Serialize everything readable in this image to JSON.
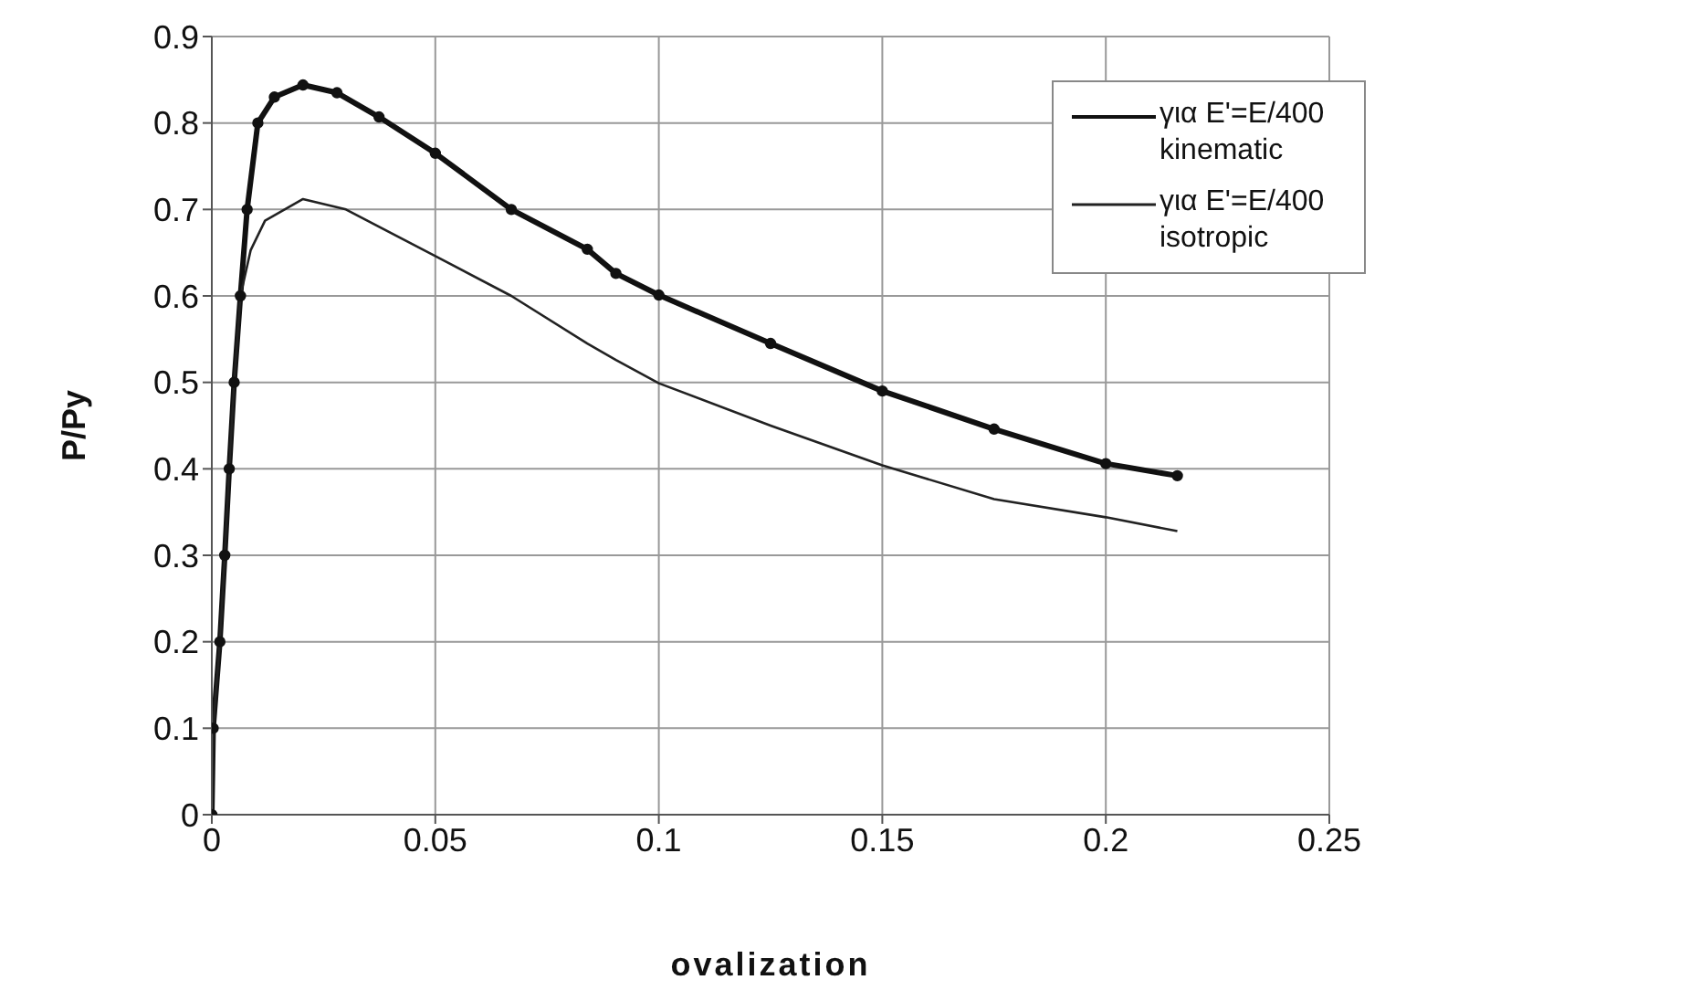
{
  "chart_data": {
    "type": "line",
    "xlabel": "ovalization",
    "ylabel": "P/Py",
    "xlim": [
      0,
      0.25
    ],
    "xticks": [
      0,
      0.05,
      0.1,
      0.15,
      0.2,
      0.25
    ],
    "ylim": [
      0,
      0.9
    ],
    "yticks": [
      0,
      0.1,
      0.2,
      0.3,
      0.4,
      0.5,
      0.6,
      0.7,
      0.8,
      0.9
    ],
    "grid": true,
    "legend": "top right",
    "series": [
      {
        "name": "για E'=E/400 kinematic",
        "color": "#111111",
        "marker": "circle",
        "x": [
          0,
          0.0003,
          0.0018,
          0.0029,
          0.0039,
          0.005,
          0.0064,
          0.0079,
          0.0103,
          0.014,
          0.0204,
          0.028,
          0.0374,
          0.05,
          0.067,
          0.084,
          0.0904,
          0.1,
          0.125,
          0.15,
          0.175,
          0.2,
          0.216
        ],
        "values": [
          0,
          0.1,
          0.2,
          0.3,
          0.4,
          0.5,
          0.6,
          0.7,
          0.8,
          0.83,
          0.844,
          0.835,
          0.807,
          0.765,
          0.7,
          0.654,
          0.626,
          0.601,
          0.545,
          0.49,
          0.446,
          0.406,
          0.392
        ]
      },
      {
        "name": "για E'=E/400 isotropic",
        "color": "#222222",
        "marker": "none",
        "x": [
          0,
          0.0003,
          0.0018,
          0.0029,
          0.0039,
          0.005,
          0.0064,
          0.0087,
          0.0119,
          0.0204,
          0.03,
          0.05,
          0.067,
          0.084,
          0.0904,
          0.1,
          0.125,
          0.15,
          0.175,
          0.2,
          0.216
        ],
        "values": [
          0,
          0.1,
          0.2,
          0.3,
          0.4,
          0.5,
          0.6,
          0.653,
          0.687,
          0.712,
          0.7,
          0.646,
          0.6,
          0.545,
          0.526,
          0.499,
          0.45,
          0.404,
          0.365,
          0.344,
          0.328
        ]
      }
    ]
  }
}
